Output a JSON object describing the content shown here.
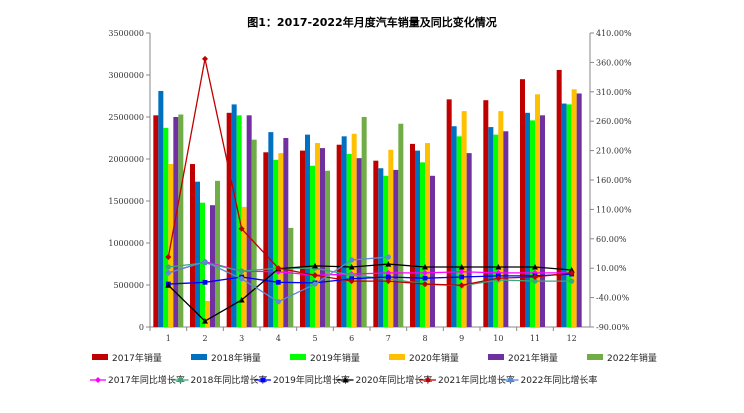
{
  "chart_data": {
    "type": "bar+line",
    "title": "图1：2017-2022年月度汽车销量及同比变化情况",
    "categories": [
      "1",
      "2",
      "3",
      "4",
      "5",
      "6",
      "7",
      "8",
      "9",
      "10",
      "11",
      "12"
    ],
    "y_left": {
      "range": [
        0,
        3500000
      ],
      "ticks": [
        "0",
        "500000",
        "1000000",
        "1500000",
        "2000000",
        "2500000",
        "3000000",
        "3500000"
      ]
    },
    "y_right": {
      "range": [
        -90,
        410
      ],
      "unit": "%",
      "ticks": [
        "-90.00%",
        "-40.00%",
        "10.00%",
        "60.00%",
        "110.00%",
        "160.00%",
        "210.00%",
        "260.00%",
        "310.00%",
        "360.00%",
        "410.00%"
      ]
    },
    "grid": false,
    "legend_position": "bottom",
    "bar_series": [
      {
        "name": "2017年销量",
        "color": "#C00000",
        "values": [
          2520000,
          1940000,
          2550000,
          2080000,
          2100000,
          2170000,
          1980000,
          2180000,
          2710000,
          2700000,
          2950000,
          3060000
        ]
      },
      {
        "name": "2018年销量",
        "color": "#0070C0",
        "values": [
          2810000,
          1730000,
          2650000,
          2320000,
          2290000,
          2270000,
          1890000,
          2100000,
          2390000,
          2380000,
          2550000,
          2660000
        ]
      },
      {
        "name": "2019年销量",
        "color": "#00FF00",
        "values": [
          2370000,
          1480000,
          2520000,
          1990000,
          1920000,
          2060000,
          1800000,
          1960000,
          2270000,
          2290000,
          2460000,
          2650000
        ]
      },
      {
        "name": "2020年销量",
        "color": "#FFC000",
        "values": [
          1940000,
          310000,
          1430000,
          2070000,
          2190000,
          2300000,
          2110000,
          2190000,
          2570000,
          2570000,
          2770000,
          2830000
        ]
      },
      {
        "name": "2021年销量",
        "color": "#7030A0",
        "values": [
          2500000,
          1450000,
          2520000,
          2250000,
          2130000,
          2010000,
          1870000,
          1800000,
          2070000,
          2330000,
          2520000,
          2780000
        ]
      },
      {
        "name": "2022年销量",
        "color": "#70AD47",
        "values": [
          2530000,
          1740000,
          2230000,
          1180000,
          1860000,
          2500000,
          2420000,
          null,
          null,
          null,
          null,
          null
        ]
      }
    ],
    "line_series": [
      {
        "name": "2017年同比增长率",
        "color": "#FF00FF",
        "marker": "diamond",
        "values": [
          2,
          21,
          5,
          4,
          -2,
          0,
          2,
          2,
          4,
          2,
          2,
          2
        ]
      },
      {
        "name": "2018年同比增长率",
        "color": "#3CA87A",
        "marker": "circle",
        "values": [
          12,
          19,
          5,
          10,
          10,
          -2,
          -8,
          -17,
          -20,
          -10,
          -12,
          -12
        ]
      },
      {
        "name": "2019年同比增长率",
        "color": "#0000FF",
        "marker": "square",
        "values": [
          -17,
          -14,
          -5,
          -14,
          -15,
          -8,
          -5,
          -7,
          -5,
          -3,
          -3,
          0
        ]
      },
      {
        "name": "2020年同比增长率",
        "color": "#000000",
        "marker": "triangle",
        "values": [
          -19,
          -80,
          -44,
          9,
          14,
          12,
          17,
          12,
          12,
          12,
          12,
          7
        ]
      },
      {
        "name": "2021年同比增长率",
        "color": "#C00000",
        "marker": "diamond",
        "values": [
          29,
          366,
          77,
          10,
          -2,
          -12,
          -12,
          -17,
          -19,
          -7,
          -5,
          2
        ]
      },
      {
        "name": "2022年同比增长率",
        "color": "#5B8BD0",
        "marker": "circle",
        "values": [
          2,
          21,
          -8,
          -47,
          -17,
          24,
          29,
          null,
          null,
          null,
          null,
          null
        ]
      }
    ]
  }
}
